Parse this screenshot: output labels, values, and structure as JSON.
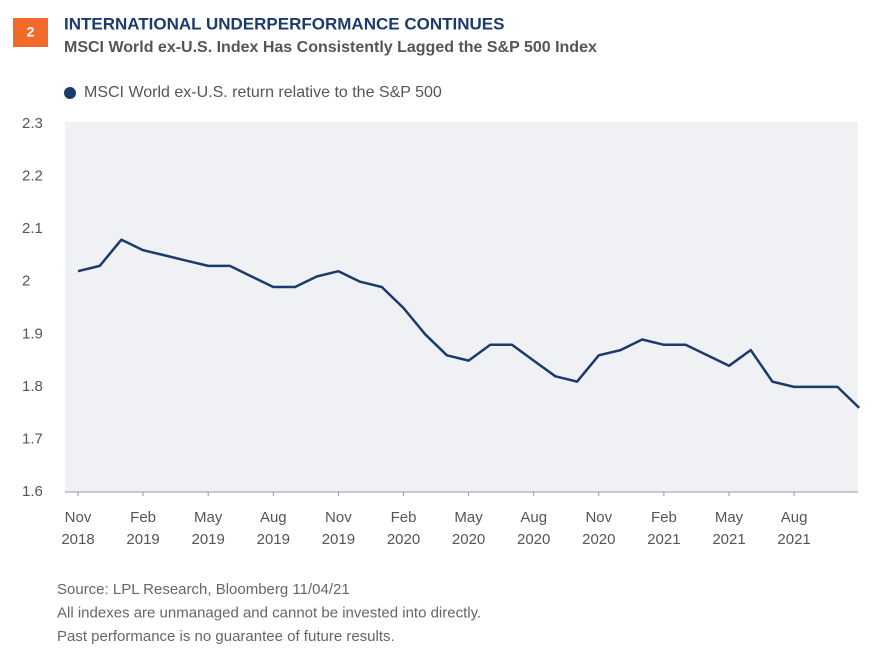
{
  "chart_data": {
    "type": "line",
    "figure_number": "2",
    "title": "INTERNATIONAL UNDERPERFORMANCE CONTINUES",
    "subtitle": "MSCI World ex-U.S. Index Has Consistently Lagged the S&P 500 Index",
    "x": [
      "2018-11",
      "2018-12",
      "2019-01",
      "2019-02",
      "2019-03",
      "2019-04",
      "2019-05",
      "2019-06",
      "2019-07",
      "2019-08",
      "2019-09",
      "2019-10",
      "2019-11",
      "2019-12",
      "2020-01",
      "2020-02",
      "2020-03",
      "2020-04",
      "2020-05",
      "2020-06",
      "2020-07",
      "2020-08",
      "2020-09",
      "2020-10",
      "2020-11",
      "2020-12",
      "2021-01",
      "2021-02",
      "2021-03",
      "2021-04",
      "2021-05",
      "2021-06",
      "2021-07",
      "2021-08",
      "2021-09",
      "2021-10",
      "2021-11"
    ],
    "series": [
      {
        "name": "MSCI World ex-U.S. return relative to the S&P 500",
        "color": "#1c3a6b",
        "values": [
          2.02,
          2.03,
          2.08,
          2.06,
          2.05,
          2.04,
          2.03,
          2.03,
          2.01,
          1.99,
          1.99,
          2.01,
          2.02,
          2.0,
          1.99,
          1.95,
          1.9,
          1.86,
          1.85,
          1.88,
          1.88,
          1.85,
          1.82,
          1.81,
          1.86,
          1.87,
          1.89,
          1.88,
          1.88,
          1.86,
          1.84,
          1.87,
          1.81,
          1.8,
          1.8,
          1.8,
          1.76
        ]
      }
    ],
    "ylim": [
      1.6,
      2.3
    ],
    "yticks": [
      1.6,
      1.7,
      1.8,
      1.9,
      2,
      2.1,
      2.2,
      2.3
    ],
    "xticks": [
      {
        "value": "2018-11",
        "label": [
          "Nov",
          "2018"
        ]
      },
      {
        "value": "2019-02",
        "label": [
          "Feb",
          "2019"
        ]
      },
      {
        "value": "2019-05",
        "label": [
          "May",
          "2019"
        ]
      },
      {
        "value": "2019-08",
        "label": [
          "Aug",
          "2019"
        ]
      },
      {
        "value": "2019-11",
        "label": [
          "Nov",
          "2019"
        ]
      },
      {
        "value": "2020-02",
        "label": [
          "Feb",
          "2020"
        ]
      },
      {
        "value": "2020-05",
        "label": [
          "May",
          "2020"
        ]
      },
      {
        "value": "2020-08",
        "label": [
          "Aug",
          "2020"
        ]
      },
      {
        "value": "2020-11",
        "label": [
          "Nov",
          "2020"
        ]
      },
      {
        "value": "2021-02",
        "label": [
          "Feb",
          "2021"
        ]
      },
      {
        "value": "2021-05",
        "label": [
          "May",
          "2021"
        ]
      },
      {
        "value": "2021-08",
        "label": [
          "Aug",
          "2021"
        ]
      }
    ],
    "footnotes": [
      "Source: LPL Research, Bloomberg  11/04/21",
      "All indexes are unmanaged and cannot be invested into directly.",
      "Past performance is no guarantee of future results."
    ]
  }
}
